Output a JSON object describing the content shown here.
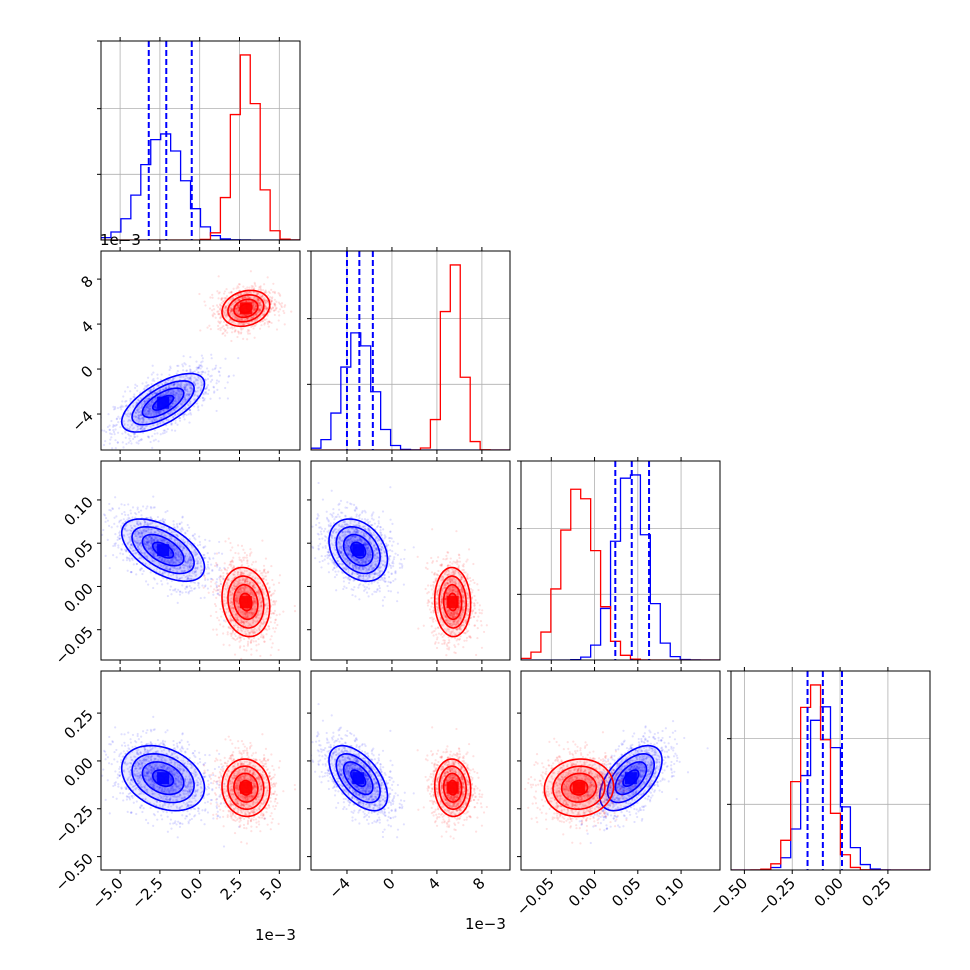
{
  "chart_data": {
    "type": "corner",
    "series": [
      {
        "name": "",
        "color": "#0000ff"
      },
      {
        "name": "",
        "color": "#ff0000"
      }
    ],
    "parameters": [
      {
        "index": 0,
        "range": [
          -6.2,
          6.3
        ],
        "ticks": [
          -5.0,
          -2.5,
          0.0,
          2.5,
          5.0
        ],
        "tick_labels": [
          "−5.0",
          "−2.5",
          "0.0",
          "2.5",
          "5.0"
        ],
        "exponent_label": "1e−3"
      },
      {
        "index": 1,
        "range": [
          -7.2,
          10.5
        ],
        "ticks": [
          -4,
          0,
          4,
          8
        ],
        "tick_labels": [
          "−4",
          "0",
          "4",
          "8"
        ],
        "exponent_label": "1e−3"
      },
      {
        "index": 2,
        "range": [
          -0.085,
          0.145
        ],
        "ticks": [
          -0.05,
          0.0,
          0.05,
          0.1
        ],
        "tick_labels": [
          "−0.05",
          "0.00",
          "0.05",
          "0.10"
        ]
      },
      {
        "index": 3,
        "range": [
          -0.57,
          0.47
        ],
        "ticks": [
          -0.5,
          -0.25,
          0.0,
          0.25
        ],
        "tick_labels": [
          "−0.50",
          "−0.25",
          "0.00",
          "0.25"
        ]
      }
    ],
    "blue": {
      "means": [
        -2.3,
        -3.0,
        0.042,
        -0.09
      ],
      "sds": [
        1.3,
        1.3,
        0.018,
        0.085
      ],
      "corr": [
        [
          1,
          0.65,
          -0.55,
          -0.3
        ],
        [
          0.65,
          1,
          -0.3,
          -0.55
        ],
        [
          -0.55,
          -0.3,
          1,
          0.55
        ],
        [
          -0.3,
          -0.55,
          0.55,
          1
        ]
      ],
      "quantiles_16_50_84": [
        [
          -3.2,
          -2.1,
          -0.5
        ],
        [
          -4.0,
          -2.9,
          -1.7
        ],
        [
          0.024,
          0.043,
          0.063
        ],
        [
          -0.17,
          -0.09,
          0.01
        ]
      ]
    },
    "red": {
      "means": [
        2.9,
        5.4,
        -0.018,
        -0.14
      ],
      "sds": [
        0.75,
        0.8,
        0.02,
        0.075
      ],
      "corr": [
        [
          1,
          0.2,
          -0.15,
          -0.05
        ],
        [
          0.2,
          1,
          -0.05,
          -0.05
        ],
        [
          -0.15,
          -0.05,
          1,
          0.05
        ],
        [
          -0.05,
          -0.05,
          0.05,
          1
        ]
      ]
    }
  }
}
